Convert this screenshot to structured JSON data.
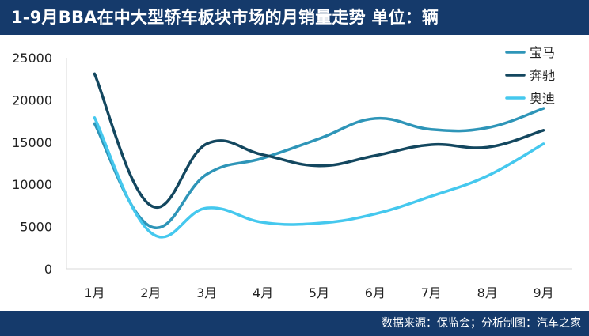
{
  "header": {
    "title": "1-9月BBA在中大型轿车板块市场的月销量走势  单位：辆"
  },
  "footer": {
    "source": "数据来源：保监会；分析制图：汽车之家"
  },
  "chart_data": {
    "type": "line",
    "title": "1-9月BBA在中大型轿车板块市场的月销量走势",
    "unit": "单位：辆",
    "categories": [
      "1月",
      "2月",
      "3月",
      "4月",
      "5月",
      "6月",
      "7月",
      "8月",
      "9月"
    ],
    "yticks": [
      "0",
      "5000",
      "10000",
      "15000",
      "20000",
      "25000"
    ],
    "ylim": [
      0,
      25000
    ],
    "grid": false,
    "legend_position": "top-right",
    "series": [
      {
        "name": "宝马",
        "color": "#2e95b8",
        "values": [
          17200,
          5000,
          11200,
          13100,
          15400,
          17800,
          16500,
          16700,
          19000
        ]
      },
      {
        "name": "奔驰",
        "color": "#13475f",
        "values": [
          23100,
          7500,
          14800,
          13500,
          12200,
          13400,
          14700,
          14400,
          16400
        ]
      },
      {
        "name": "奥迪",
        "color": "#45c8ee",
        "values": [
          17900,
          4300,
          7200,
          5500,
          5400,
          6500,
          8600,
          11000,
          14800
        ]
      }
    ]
  }
}
